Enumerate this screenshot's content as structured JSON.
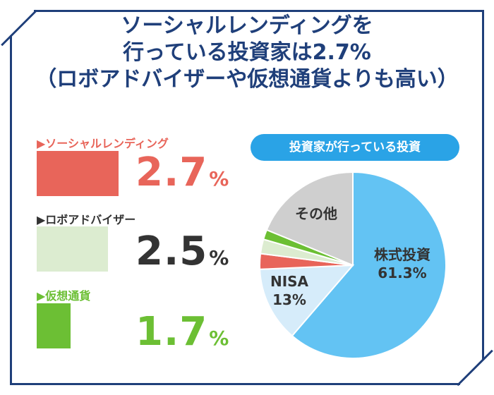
{
  "title": {
    "line1": "ソーシャルレンディングを",
    "line2": "行っている投資家は2.7%",
    "line3": "（ロボアドバイザーや仮想通貨よりも高い）"
  },
  "items": [
    {
      "label": "▶ソーシャルレンディング",
      "value": "2.7",
      "unit": "%",
      "color": "#e8655a",
      "bar_color": "#e8655a",
      "label_color": "#e8655a",
      "value_color": "#e8655a"
    },
    {
      "label": "▶ロボアドバイザー",
      "value": "2.5",
      "unit": "%",
      "color": "#dcecd0",
      "bar_color": "#dcecd0",
      "label_color": "#333333",
      "value_color": "#333333"
    },
    {
      "label": "▶仮想通貨",
      "value": "1.7",
      "unit": "%",
      "color": "#6cbf34",
      "bar_color": "#6cbf34",
      "label_color": "#6cbf34",
      "value_color": "#6cbf34"
    }
  ],
  "pie_title": "投資家が行っている投資",
  "chart_data": {
    "type": "pie",
    "title": "投資家が行っている投資",
    "slices": [
      {
        "name": "株式投資",
        "label": "61.3%",
        "value": 61.3,
        "color": "#63c3f3"
      },
      {
        "name": "NISA",
        "label": "13%",
        "value": 13,
        "color": "#d6ecfa"
      },
      {
        "name": "ソーシャルレンディング",
        "label": "",
        "value": 2.7,
        "color": "#e8655a"
      },
      {
        "name": "ロボアドバイザー",
        "label": "",
        "value": 2.5,
        "color": "#dcecd0"
      },
      {
        "name": "仮想通貨",
        "label": "",
        "value": 1.7,
        "color": "#6cbf34"
      },
      {
        "name": "その他",
        "label": "",
        "value": 18.8,
        "color": "#cfcfcf"
      }
    ]
  },
  "colors": {
    "frame": "#1f3f7a",
    "pill": "#2aa3e6"
  }
}
